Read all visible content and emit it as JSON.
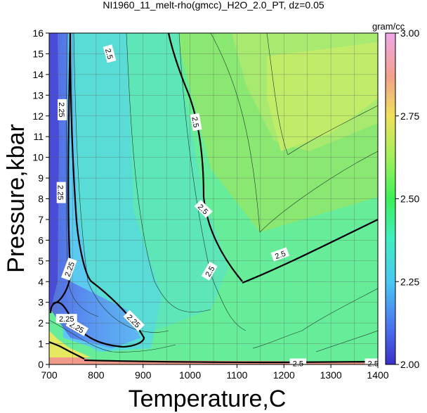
{
  "chart_data": {
    "type": "heatmap",
    "title": "NI1960_11_melt-rho(gmcc)_H2O_2.0_PT, dz=0.05",
    "xlabel": "Temperature,C",
    "ylabel": "Pressure,kbar",
    "xlim": [
      700,
      1400
    ],
    "ylim": [
      0,
      16
    ],
    "xticks": [
      700,
      800,
      900,
      1000,
      1100,
      1200,
      1300,
      1400
    ],
    "yticks": [
      0,
      1,
      2,
      3,
      4,
      5,
      6,
      7,
      8,
      9,
      10,
      11,
      12,
      13,
      14,
      15,
      16
    ],
    "grid": true,
    "colorbar": {
      "unit": "gram/cc",
      "range": [
        2.0,
        3.0
      ],
      "ticks": [
        "2.00",
        "2.25",
        "2.50",
        "2.75",
        "3.00"
      ]
    },
    "contour_levels_labeled": [
      2.25,
      2.5
    ],
    "contour_labels": [
      "2.25",
      "2.25",
      "2.25",
      "2.25",
      "2.25",
      "2.25",
      "2.5",
      "2.5",
      "2.5",
      "2.5",
      "2.5",
      "2.5",
      "2.5"
    ]
  }
}
